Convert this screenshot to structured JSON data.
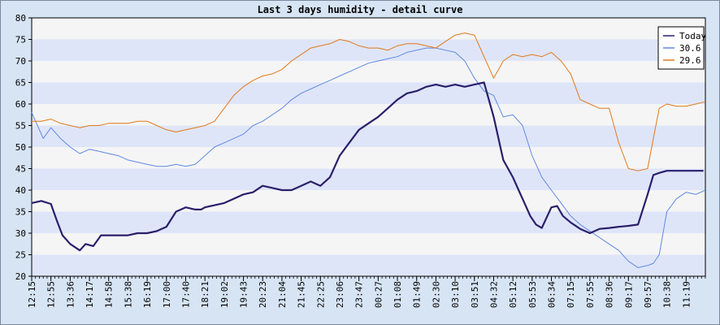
{
  "chart_data": {
    "type": "line",
    "title": "Last 3 days humidity - detail curve",
    "xlabel": "",
    "ylabel": "",
    "ylim": [
      20,
      80
    ],
    "yticks": [
      20,
      25,
      30,
      35,
      40,
      45,
      50,
      55,
      60,
      65,
      70,
      75,
      80
    ],
    "grid": "horizontal alternating bands",
    "legend_position": "top-right",
    "x_ticks": [
      "12:15",
      "12:55",
      "13:36",
      "14:17",
      "14:58",
      "15:38",
      "16:19",
      "17:00",
      "17:40",
      "18:21",
      "19:02",
      "19:43",
      "20:23",
      "21:04",
      "21:45",
      "22:25",
      "23:06",
      "23:47",
      "00:27",
      "01:08",
      "01:49",
      "02:30",
      "03:10",
      "03:51",
      "04:32",
      "05:12",
      "05:53",
      "06:34",
      "07:15",
      "07:55",
      "08:36",
      "09:17",
      "09:57",
      "10:38",
      "11:19"
    ],
    "series": [
      {
        "name": "Today",
        "color": "#2a1f6a",
        "width": 2.2,
        "x": [
          0,
          0.5,
          1,
          1.3,
          1.6,
          2,
          2.5,
          2.8,
          3.2,
          3.6,
          4,
          4.5,
          5,
          5.5,
          6,
          6.5,
          7,
          7.5,
          8,
          8.5,
          8.8,
          9,
          9.5,
          10,
          10.5,
          11,
          11.5,
          12,
          12.5,
          13,
          13.5,
          14,
          14.5,
          15,
          15.5,
          16,
          16.5,
          17,
          17.5,
          18,
          18.5,
          19,
          19.5,
          20,
          20.5,
          21,
          21.5,
          22,
          22.5,
          23,
          23.5,
          24,
          24.5,
          25,
          25.3,
          25.6,
          25.9,
          26.2,
          26.5,
          27,
          27.3,
          27.6,
          28,
          28.5,
          29,
          29.5,
          30,
          30.5,
          31,
          31.5,
          32,
          32.3,
          32.6,
          33,
          33.5,
          34,
          34.5,
          34.9
        ],
        "values": [
          37,
          37.5,
          36.8,
          33,
          29.5,
          27.5,
          26,
          27.5,
          27,
          29.5,
          29.5,
          29.5,
          29.5,
          30,
          30,
          30.5,
          31.5,
          35,
          36,
          35.5,
          35.5,
          36,
          36.5,
          37,
          38,
          39,
          39.5,
          41,
          40.5,
          40,
          40,
          41,
          42,
          41,
          43,
          48,
          51,
          54,
          55.5,
          57,
          59,
          61,
          62.5,
          63,
          64,
          64.5,
          64,
          64.5,
          64,
          64.5,
          65,
          57,
          47,
          43,
          40,
          37,
          34,
          32,
          31.2,
          36,
          36.3,
          34,
          32.5,
          31,
          30,
          31,
          31.2,
          31.5,
          31.7,
          32,
          39,
          43.5,
          44,
          44.5,
          44.5,
          44.5,
          44.5,
          44.5
        ]
      },
      {
        "name": "30.6",
        "color": "#5f8ae0",
        "width": 1,
        "x": [
          0,
          0.3,
          0.6,
          1,
          1.5,
          2,
          2.5,
          3,
          3.5,
          4,
          4.5,
          5,
          5.5,
          6,
          6.5,
          7,
          7.5,
          8,
          8.5,
          9,
          9.5,
          10,
          10.5,
          11,
          11.5,
          12,
          12.5,
          13,
          13.5,
          14,
          14.5,
          15,
          15.5,
          16,
          16.5,
          17,
          17.5,
          18,
          18.5,
          19,
          19.5,
          20,
          20.5,
          21,
          21.5,
          22,
          22.5,
          23,
          23.5,
          24,
          24.5,
          25,
          25.5,
          26,
          26.5,
          27,
          27.5,
          28,
          28.5,
          29,
          29.5,
          30,
          30.5,
          31,
          31.5,
          32,
          32.3,
          32.6,
          33,
          33.5,
          34,
          34.5,
          35
        ],
        "values": [
          58,
          55,
          52,
          54.5,
          52,
          50,
          48.5,
          49.5,
          49,
          48.5,
          48,
          47,
          46.5,
          46,
          45.5,
          45.5,
          46,
          45.5,
          46,
          48,
          50,
          51,
          52,
          53,
          55,
          56,
          57.5,
          59,
          61,
          62.5,
          63.5,
          64.5,
          65.5,
          66.5,
          67.5,
          68.5,
          69.5,
          70,
          70.5,
          71,
          72,
          72.5,
          73,
          73,
          72.5,
          72,
          70,
          66,
          63,
          62,
          57,
          57.5,
          55,
          48,
          43,
          40,
          37,
          34,
          32,
          30.5,
          29,
          27.5,
          26,
          23.5,
          22,
          22.5,
          23,
          25,
          35,
          38,
          39.5,
          39,
          40
        ]
      },
      {
        "name": "29.6",
        "color": "#e07a1a",
        "width": 1,
        "x": [
          0,
          0.5,
          1,
          1.5,
          2,
          2.5,
          3,
          3.5,
          4,
          4.5,
          5,
          5.5,
          6,
          6.5,
          7,
          7.5,
          8,
          8.5,
          9,
          9.5,
          10,
          10.5,
          11,
          11.5,
          12,
          12.5,
          13,
          13.5,
          14,
          14.5,
          15,
          15.5,
          16,
          16.5,
          17,
          17.5,
          18,
          18.5,
          19,
          19.5,
          20,
          20.5,
          21,
          21.5,
          22,
          22.5,
          23,
          23.5,
          24,
          24.5,
          25,
          25.5,
          26,
          26.5,
          27,
          27.5,
          28,
          28.5,
          29,
          29.5,
          30,
          30.5,
          31,
          31.5,
          32,
          32.3,
          32.6,
          33,
          33.5,
          34,
          34.5,
          35
        ],
        "values": [
          56,
          56,
          56.5,
          55.5,
          55,
          54.5,
          55,
          55,
          55.5,
          55.5,
          55.5,
          56,
          56,
          55,
          54,
          53.5,
          54,
          54.5,
          55,
          56,
          59,
          62,
          64,
          65.5,
          66.5,
          67,
          68,
          70,
          71.5,
          73,
          73.5,
          74,
          75,
          74.5,
          73.5,
          73,
          73,
          72.5,
          73.5,
          74,
          74,
          73.5,
          73,
          74.5,
          76,
          76.5,
          76,
          71,
          66,
          70,
          71.5,
          71,
          71.5,
          71,
          72,
          70,
          67,
          61,
          60,
          59,
          59,
          51,
          45,
          44.5,
          45,
          52,
          59,
          60,
          59.5,
          59.5,
          60,
          60.5
        ]
      }
    ]
  }
}
